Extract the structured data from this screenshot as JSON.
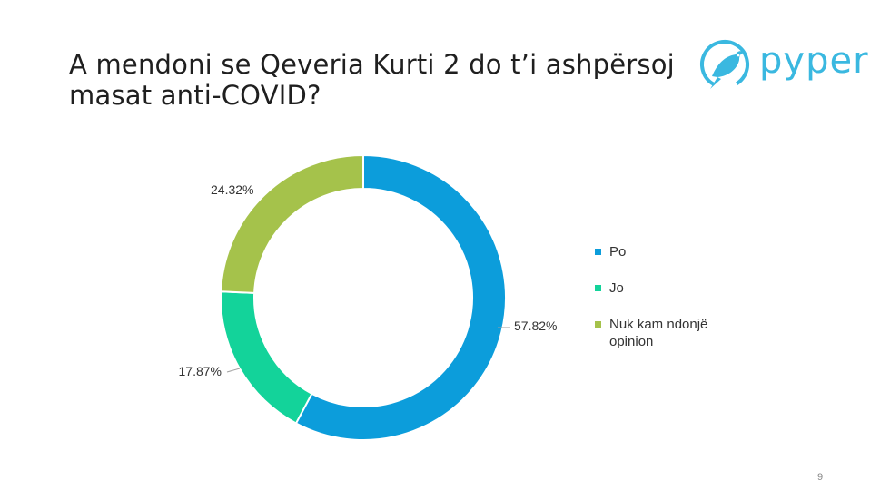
{
  "slide": {
    "title": "A mendoni se Qeveria Kurti 2 do t’i ashpërsoj masat anti-COVID?",
    "page_number": "9"
  },
  "logo": {
    "text": "pyper",
    "color": "#3ab8e0"
  },
  "chart_data": {
    "type": "pie",
    "variant": "donut",
    "title": "",
    "categories": [
      "Po",
      "Jo",
      "Nuk kam ndonjë opinion"
    ],
    "values": [
      57.82,
      17.87,
      24.32
    ],
    "labels": [
      "57.82%",
      "17.87%",
      "24.32%"
    ],
    "colors": [
      "#0c9ddb",
      "#13d39a",
      "#a5c24b"
    ],
    "start_angle_deg": 0,
    "direction": "clockwise",
    "legend": "right"
  }
}
